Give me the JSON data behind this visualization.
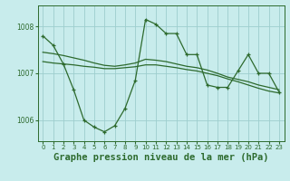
{
  "background_color": "#c8ecec",
  "grid_color": "#9ecece",
  "line_color": "#2d6a2d",
  "xlabel": "Graphe pression niveau de la mer (hPa)",
  "xlabel_fontsize": 7.5,
  "xlim": [
    -0.5,
    23.5
  ],
  "ylim": [
    1005.55,
    1008.45
  ],
  "yticks": [
    1006,
    1007,
    1008
  ],
  "xticks": [
    0,
    1,
    2,
    3,
    4,
    5,
    6,
    7,
    8,
    9,
    10,
    11,
    12,
    13,
    14,
    15,
    16,
    17,
    18,
    19,
    20,
    21,
    22,
    23
  ],
  "series1_x": [
    0,
    1,
    2,
    3,
    4,
    5,
    6,
    7,
    8,
    9,
    10,
    11,
    12,
    13,
    14,
    15,
    16,
    17,
    18,
    19,
    20,
    21,
    22,
    23
  ],
  "series1_y": [
    1007.8,
    1007.6,
    1007.2,
    1006.65,
    1006.0,
    1005.85,
    1005.75,
    1005.88,
    1006.25,
    1006.85,
    1008.15,
    1008.05,
    1007.85,
    1007.85,
    1007.4,
    1007.4,
    1006.75,
    1006.7,
    1006.7,
    1007.05,
    1007.4,
    1007.0,
    1007.0,
    1006.6
  ],
  "series2_x": [
    0,
    1,
    2,
    3,
    4,
    5,
    6,
    7,
    8,
    9,
    10,
    11,
    12,
    13,
    14,
    15,
    16,
    17,
    18,
    19,
    20,
    21,
    22,
    23
  ],
  "series2_y": [
    1007.25,
    1007.22,
    1007.2,
    1007.18,
    1007.15,
    1007.13,
    1007.1,
    1007.1,
    1007.12,
    1007.14,
    1007.18,
    1007.18,
    1007.15,
    1007.12,
    1007.08,
    1007.05,
    1007.0,
    1006.95,
    1006.88,
    1006.82,
    1006.75,
    1006.68,
    1006.62,
    1006.58
  ],
  "series3_x": [
    0,
    1,
    2,
    3,
    4,
    5,
    6,
    7,
    8,
    9,
    10,
    11,
    12,
    13,
    14,
    15,
    16,
    17,
    18,
    19,
    20,
    21,
    22,
    23
  ],
  "series3_y": [
    1007.45,
    1007.42,
    1007.38,
    1007.33,
    1007.28,
    1007.22,
    1007.17,
    1007.15,
    1007.18,
    1007.22,
    1007.3,
    1007.28,
    1007.25,
    1007.2,
    1007.15,
    1007.12,
    1007.07,
    1007.0,
    1006.92,
    1006.87,
    1006.82,
    1006.75,
    1006.7,
    1006.65
  ]
}
